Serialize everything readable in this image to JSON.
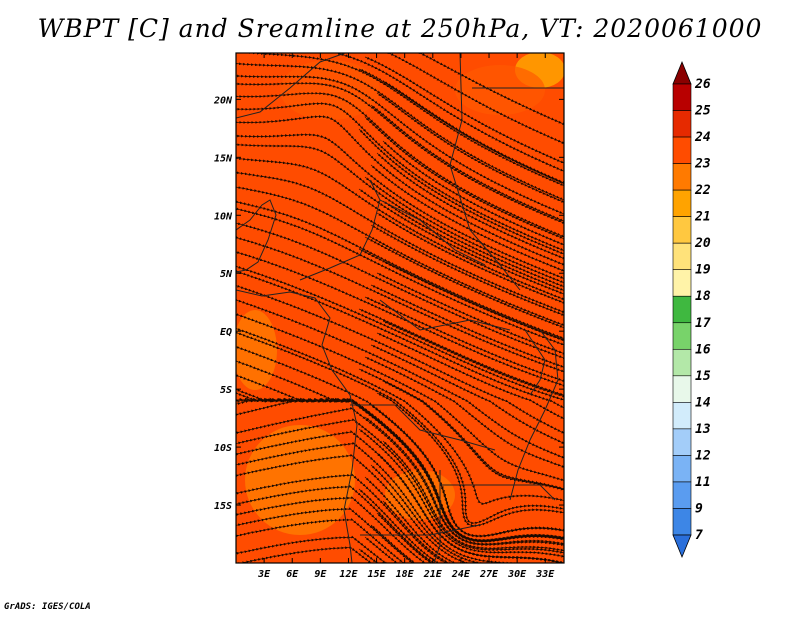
{
  "title": "WBPT [C] and Sreamline at 250hPa, VT: 2020061000",
  "credit": "GrADS: IGES/COLA",
  "map": {
    "lon_range": [
      0,
      35
    ],
    "lat_range": [
      -20,
      24
    ],
    "lon_ticks": [
      "3E",
      "6E",
      "9E",
      "12E",
      "15E",
      "18E",
      "21E",
      "24E",
      "27E",
      "30E",
      "33E"
    ],
    "lat_ticks": [
      "20N",
      "15N",
      "10N",
      "5N",
      "EQ",
      "5S",
      "10S",
      "15S"
    ]
  },
  "colorbar": {
    "labels": [
      "7",
      "9",
      "11",
      "12",
      "13",
      "14",
      "15",
      "16",
      "17",
      "18",
      "19",
      "20",
      "21",
      "22",
      "23",
      "24",
      "25",
      "26"
    ],
    "colors": [
      "#2a6fdb",
      "#3d86e6",
      "#5a9cf0",
      "#7ab3f5",
      "#a3cdf9",
      "#d2ecfb",
      "#e8f8ea",
      "#b3e8a8",
      "#78d36a",
      "#3fb840",
      "#fff3a8",
      "#ffe27a",
      "#ffc840",
      "#ffa300",
      "#ff7a00",
      "#ff4c00",
      "#e62a00",
      "#b80000",
      "#8a0000"
    ]
  }
}
